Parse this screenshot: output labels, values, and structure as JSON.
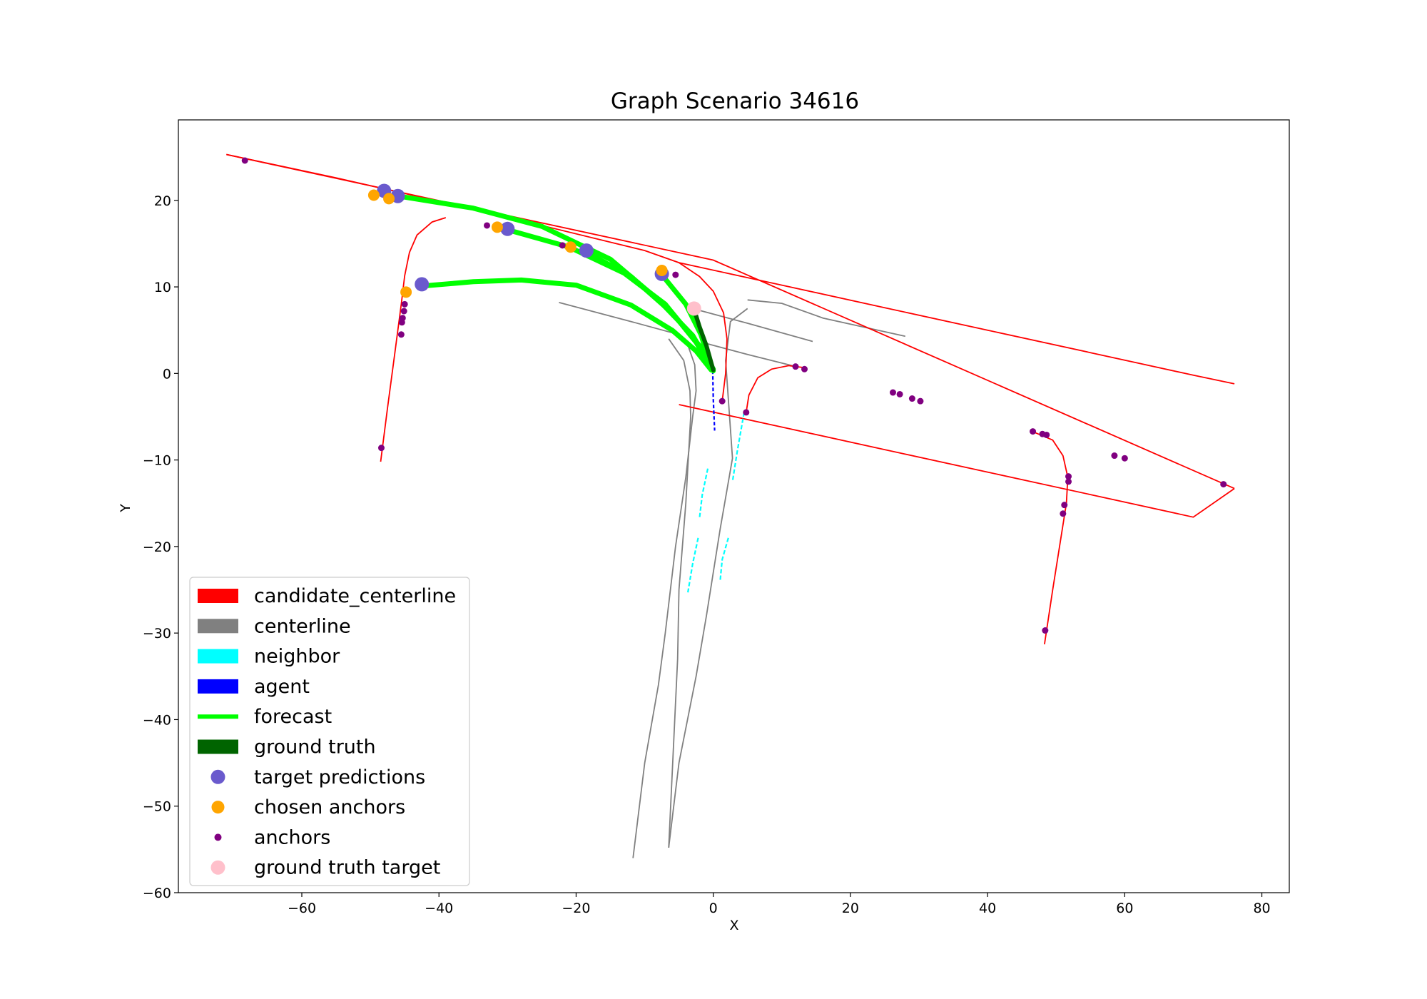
{
  "chart_data": {
    "type": "scatter",
    "title": "Graph Scenario 34616",
    "xlabel": "X",
    "ylabel": "Y",
    "xlim": [
      -78,
      84
    ],
    "ylim": [
      -60,
      29.3
    ],
    "xticks": [
      -60,
      -40,
      -20,
      0,
      20,
      40,
      60,
      80
    ],
    "yticks": [
      -60,
      -50,
      -40,
      -30,
      -20,
      -10,
      0,
      10,
      20
    ],
    "xtick_labels": [
      "−60",
      "−40",
      "−20",
      "0",
      "20",
      "40",
      "60",
      "80"
    ],
    "ytick_labels": [
      "−60",
      "−50",
      "−40",
      "−30",
      "−20",
      "−10",
      "0",
      "10",
      "20"
    ],
    "grid": false,
    "legend_position": "lower-left",
    "colors": {
      "candidate_centerline": "#ff0000",
      "centerline": "#808080",
      "neighbor": "#00ffff",
      "agent": "#0000ff",
      "forecast": "#00ff00",
      "ground_truth": "#006400",
      "target_predictions": "#6a5acd",
      "chosen_anchors": "#ffa500",
      "anchors": "#800080",
      "ground_truth_target": "#ffc0cb"
    },
    "legend": [
      {
        "label": "candidate_centerline",
        "kind": "patch",
        "color": "#ff0000"
      },
      {
        "label": "centerline",
        "kind": "patch",
        "color": "#808080"
      },
      {
        "label": "neighbor",
        "kind": "patch",
        "color": "#00ffff"
      },
      {
        "label": "agent",
        "kind": "patch",
        "color": "#0000ff"
      },
      {
        "label": "forecast",
        "kind": "line",
        "color": "#00ff00"
      },
      {
        "label": "ground truth",
        "kind": "patch",
        "color": "#006400"
      },
      {
        "label": "target predictions",
        "kind": "dot-large",
        "color": "#6a5acd"
      },
      {
        "label": "chosen anchors",
        "kind": "dot-medium",
        "color": "#ffa500"
      },
      {
        "label": "anchors",
        "kind": "dot-small",
        "color": "#800080"
      },
      {
        "label": "ground truth target",
        "kind": "dot-large",
        "color": "#ffc0cb"
      }
    ],
    "candidate_centerlines": [
      [
        [
          -71,
          25.3
        ],
        [
          -55,
          22.6
        ],
        [
          -40,
          19.9
        ],
        [
          -25,
          17.1
        ],
        [
          -10,
          14.2
        ],
        [
          -5,
          12.8
        ],
        [
          -2,
          11.2
        ],
        [
          0,
          9.5
        ],
        [
          1.5,
          7
        ],
        [
          2,
          4
        ],
        [
          1.8,
          0
        ],
        [
          1.3,
          -3.2
        ]
      ],
      [
        [
          -48.5,
          -10.2
        ],
        [
          -47.5,
          -4
        ],
        [
          -46.5,
          2
        ],
        [
          -45.5,
          8
        ],
        [
          -45,
          11.3
        ],
        [
          -44.3,
          14
        ],
        [
          -43.2,
          16
        ],
        [
          -41,
          17.5
        ],
        [
          -39,
          18
        ]
      ],
      [
        [
          -5,
          12.8
        ],
        [
          10,
          10.2
        ],
        [
          25,
          7.6
        ],
        [
          40,
          5
        ],
        [
          55,
          2.4
        ],
        [
          70,
          -0.2
        ],
        [
          76,
          -1.2
        ]
      ],
      [
        [
          -5,
          -3.6
        ],
        [
          10,
          -6.2
        ],
        [
          25,
          -8.8
        ],
        [
          40,
          -11.4
        ],
        [
          55,
          -14
        ],
        [
          70,
          -16.6
        ],
        [
          76,
          -13.3
        ]
      ],
      [
        [
          -71,
          25.3
        ],
        [
          0,
          13.1
        ],
        [
          76,
          -13.3
        ]
      ],
      [
        [
          4.8,
          -4.5
        ],
        [
          5.2,
          -2.5
        ],
        [
          6.5,
          -0.5
        ],
        [
          8.5,
          0.5
        ],
        [
          11,
          0.9
        ],
        [
          13,
          0.7
        ]
      ],
      [
        [
          46.5,
          -6.7
        ],
        [
          49.5,
          -7.7
        ],
        [
          51,
          -9.5
        ],
        [
          51.7,
          -12
        ],
        [
          51.5,
          -15
        ],
        [
          50.5,
          -20
        ],
        [
          49.5,
          -25
        ],
        [
          48.3,
          -31.3
        ]
      ]
    ],
    "centerlines": [
      [
        [
          -22.5,
          8.2
        ],
        [
          -12,
          6
        ],
        [
          -6,
          4.7
        ],
        [
          -3.8,
          3.5
        ],
        [
          -2.7,
          1
        ],
        [
          -2.5,
          -2
        ],
        [
          -3,
          -5
        ]
      ],
      [
        [
          -3,
          -5
        ],
        [
          -4,
          -12
        ],
        [
          -5.5,
          -20
        ],
        [
          -7,
          -30
        ],
        [
          -8,
          -36
        ],
        [
          -10,
          -45
        ],
        [
          -11.7,
          -56
        ]
      ],
      [
        [
          -6.5,
          4
        ],
        [
          -4.3,
          1.5
        ],
        [
          -3.4,
          -2
        ],
        [
          -3.3,
          -5
        ],
        [
          -4,
          -15
        ],
        [
          -5,
          -25
        ],
        [
          -5.2,
          -33
        ],
        [
          -6.5,
          -54.8
        ]
      ],
      [
        [
          -6.5,
          -54.8
        ],
        [
          -5,
          -45
        ],
        [
          -2.5,
          -35
        ],
        [
          -1,
          -28
        ],
        [
          1,
          -18
        ],
        [
          2.8,
          -9.8
        ],
        [
          1.8,
          1.5
        ],
        [
          2.5,
          6
        ],
        [
          5,
          7.5
        ]
      ],
      [
        [
          -3,
          7.5
        ],
        [
          5,
          5.8
        ],
        [
          14.5,
          3.7
        ]
      ],
      [
        [
          -1.2,
          3.5
        ],
        [
          5,
          2.2
        ],
        [
          12,
          0.8
        ]
      ],
      [
        [
          5,
          8.5
        ],
        [
          10,
          8.1
        ],
        [
          16,
          6.4
        ],
        [
          28,
          4.3
        ]
      ]
    ],
    "neighbors": [
      [
        [
          4.5,
          -4.5
        ],
        [
          3.5,
          -9
        ],
        [
          2.8,
          -12.5
        ]
      ],
      [
        [
          -0.8,
          -11
        ],
        [
          -1.6,
          -14
        ],
        [
          -2,
          -16.7
        ]
      ],
      [
        [
          -2.2,
          -19
        ],
        [
          -3,
          -22
        ],
        [
          -3.7,
          -25.3
        ]
      ],
      [
        [
          2.2,
          -19
        ],
        [
          1.3,
          -21.5
        ],
        [
          1,
          -24
        ]
      ]
    ],
    "agent": [
      [
        -0.1,
        1
      ],
      [
        0,
        -3
      ],
      [
        0.2,
        -6.6
      ]
    ],
    "ground_truth": [
      [
        -2.8,
        7.4
      ],
      [
        -2,
        5.4
      ],
      [
        -1,
        3.2
      ],
      [
        0,
        0.4
      ]
    ],
    "forecasts": [
      [
        [
          -46,
          20.5
        ],
        [
          -35,
          19.1
        ],
        [
          -25,
          17
        ],
        [
          -15,
          13.2
        ],
        [
          -8,
          8.5
        ],
        [
          -3,
          4.4
        ],
        [
          -0.2,
          0.6
        ]
      ],
      [
        [
          -30,
          16.6
        ],
        [
          -21,
          14.6
        ],
        [
          -13,
          11.6
        ],
        [
          -7,
          8
        ],
        [
          -2.5,
          3.6
        ],
        [
          0,
          0.3
        ]
      ],
      [
        [
          -42.5,
          10.1
        ],
        [
          -35,
          10.6
        ],
        [
          -28,
          10.8
        ],
        [
          -20,
          10.2
        ],
        [
          -12,
          7.9
        ],
        [
          -6,
          5
        ],
        [
          -2.5,
          2.6
        ],
        [
          -0.3,
          0.4
        ]
      ],
      [
        [
          -7.5,
          11.4
        ],
        [
          -4,
          8
        ],
        [
          -1.8,
          4.5
        ],
        [
          -0.2,
          0.5
        ]
      ],
      [
        [
          -19,
          14.2
        ],
        [
          -12,
          11.2
        ],
        [
          -6,
          7
        ],
        [
          -2,
          3.2
        ],
        [
          0,
          0.5
        ]
      ]
    ],
    "target_predictions": [
      [
        -48,
        21.1
      ],
      [
        -46,
        20.5
      ],
      [
        -30,
        16.7
      ],
      [
        -18.5,
        14.2
      ],
      [
        -7.5,
        11.5
      ],
      [
        -42.5,
        10.3
      ]
    ],
    "chosen_anchors": [
      [
        -49.5,
        20.6
      ],
      [
        -47.3,
        20.2
      ],
      [
        -31.5,
        16.9
      ],
      [
        -20.8,
        14.6
      ],
      [
        -7.5,
        11.9
      ],
      [
        -44.8,
        9.4
      ]
    ],
    "anchors": [
      [
        -68.3,
        24.6
      ],
      [
        -33,
        17.1
      ],
      [
        -22,
        14.8
      ],
      [
        -5.5,
        11.4
      ],
      [
        -45.5,
        4.5
      ],
      [
        -48.4,
        -8.6
      ],
      [
        -45,
        8
      ],
      [
        -45.1,
        7.2
      ],
      [
        -45.3,
        6.4
      ],
      [
        -45.4,
        5.9
      ],
      [
        1.3,
        -3.2
      ],
      [
        4.8,
        -4.5
      ],
      [
        12,
        0.8
      ],
      [
        13.3,
        0.5
      ],
      [
        26.2,
        -2.2
      ],
      [
        27.2,
        -2.4
      ],
      [
        29,
        -2.9
      ],
      [
        30.2,
        -3.2
      ],
      [
        46.6,
        -6.7
      ],
      [
        48,
        -7
      ],
      [
        48.6,
        -7.1
      ],
      [
        58.5,
        -9.5
      ],
      [
        60,
        -9.8
      ],
      [
        74.4,
        -12.8
      ],
      [
        51.8,
        -11.9
      ],
      [
        51.8,
        -12.5
      ],
      [
        51.2,
        -15.2
      ],
      [
        51,
        -16.2
      ],
      [
        48.4,
        -29.7
      ]
    ],
    "ground_truth_target": [
      -2.8,
      7.5
    ]
  }
}
